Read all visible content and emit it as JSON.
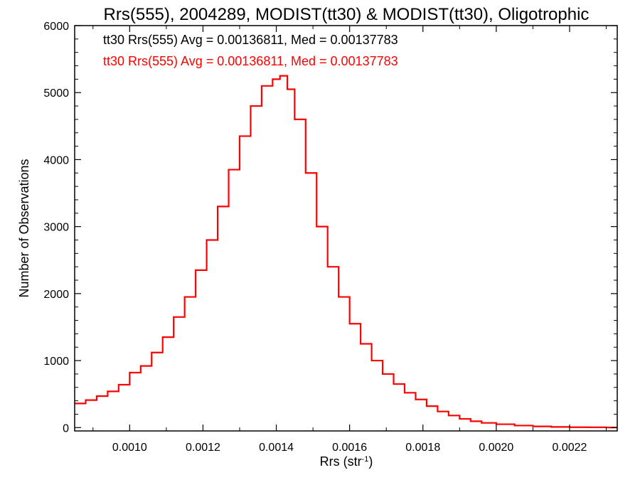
{
  "chart_data": {
    "type": "histogram",
    "title": "Rrs(555), 2004289, MODIST(tt30) & MODIST(tt30), Oligotrophic",
    "xlabel_main": "Rrs (str",
    "xlabel_sup": "-1",
    "xlabel_tail": ")",
    "ylabel": "Number of Observations",
    "xlim": [
      0.00085,
      0.00233
    ],
    "ylim": [
      -50,
      6000
    ],
    "x_ticks": [
      0.001,
      0.0012,
      0.0014,
      0.0016,
      0.0018,
      0.002,
      0.0022
    ],
    "x_tick_labels": [
      "0.0010",
      "0.0012",
      "0.0014",
      "0.0016",
      "0.0018",
      "0.0020",
      "0.0022"
    ],
    "y_ticks": [
      0,
      1000,
      2000,
      3000,
      4000,
      5000,
      6000
    ],
    "y_tick_labels": [
      "0",
      "1000",
      "2000",
      "3000",
      "4000",
      "5000",
      "6000"
    ],
    "grid": false,
    "legend_placement": "top-left",
    "legend": [
      {
        "text": "tt30 Rrs(555) Avg = 0.00136811, Med = 0.00137783",
        "color": "#000000"
      },
      {
        "text": "tt30 Rrs(555) Avg = 0.00136811, Med = 0.00137783",
        "color": "#ff0000"
      }
    ],
    "series": [
      {
        "name": "tt30 Rrs(555)",
        "color": "#ff0000",
        "points": [
          [
            0.00085,
            360
          ],
          [
            0.00088,
            410
          ],
          [
            0.00091,
            470
          ],
          [
            0.00094,
            540
          ],
          [
            0.00097,
            640
          ],
          [
            0.001,
            820
          ],
          [
            0.00103,
            920
          ],
          [
            0.00106,
            1120
          ],
          [
            0.00109,
            1350
          ],
          [
            0.00112,
            1650
          ],
          [
            0.00115,
            1950
          ],
          [
            0.00118,
            2350
          ],
          [
            0.00121,
            2800
          ],
          [
            0.00124,
            3300
          ],
          [
            0.00127,
            3850
          ],
          [
            0.0013,
            4350
          ],
          [
            0.00133,
            4800
          ],
          [
            0.00136,
            5100
          ],
          [
            0.00139,
            5200
          ],
          [
            0.00141,
            5250
          ],
          [
            0.00143,
            5050
          ],
          [
            0.00145,
            4600
          ],
          [
            0.00148,
            3800
          ],
          [
            0.00151,
            3000
          ],
          [
            0.00154,
            2400
          ],
          [
            0.00157,
            1950
          ],
          [
            0.0016,
            1550
          ],
          [
            0.00163,
            1250
          ],
          [
            0.00166,
            1000
          ],
          [
            0.00169,
            800
          ],
          [
            0.00172,
            650
          ],
          [
            0.00175,
            520
          ],
          [
            0.00178,
            420
          ],
          [
            0.00181,
            320
          ],
          [
            0.00184,
            240
          ],
          [
            0.00187,
            180
          ],
          [
            0.0019,
            130
          ],
          [
            0.00193,
            95
          ],
          [
            0.00196,
            70
          ],
          [
            0.002,
            50
          ],
          [
            0.00205,
            30
          ],
          [
            0.0021,
            18
          ],
          [
            0.00215,
            10
          ],
          [
            0.0022,
            6
          ],
          [
            0.00225,
            4
          ],
          [
            0.0023,
            2
          ],
          [
            0.00233,
            2
          ]
        ]
      }
    ]
  }
}
